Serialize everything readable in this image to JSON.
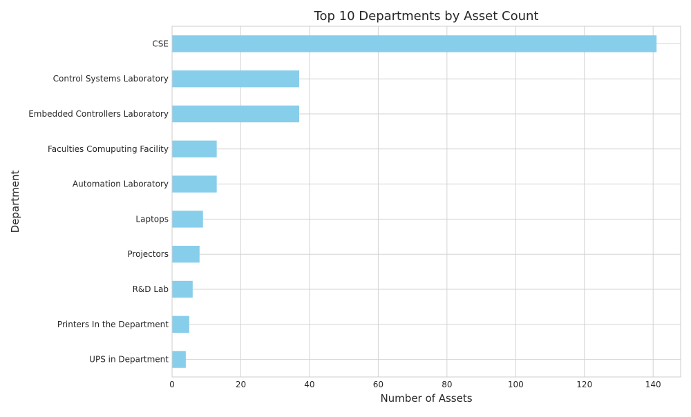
{
  "chart_data": {
    "type": "bar",
    "orientation": "horizontal",
    "title": "Top 10 Departments by Asset Count",
    "xlabel": "Number of Assets",
    "ylabel": "Department",
    "categories": [
      "CSE",
      "Control Systems Laboratory",
      "Embedded Controllers Laboratory",
      "Faculties Comuputing Facility",
      "Automation Laboratory",
      "Laptops",
      "Projectors",
      "R&D Lab",
      "Printers In the Department",
      "UPS in Department"
    ],
    "values": [
      141,
      37,
      37,
      13,
      13,
      9,
      8,
      6,
      5,
      4
    ],
    "xlim": [
      0,
      148
    ],
    "xticks": [
      0,
      20,
      40,
      60,
      80,
      100,
      120,
      140
    ],
    "grid": true,
    "bar_color": "#87ceeb"
  }
}
